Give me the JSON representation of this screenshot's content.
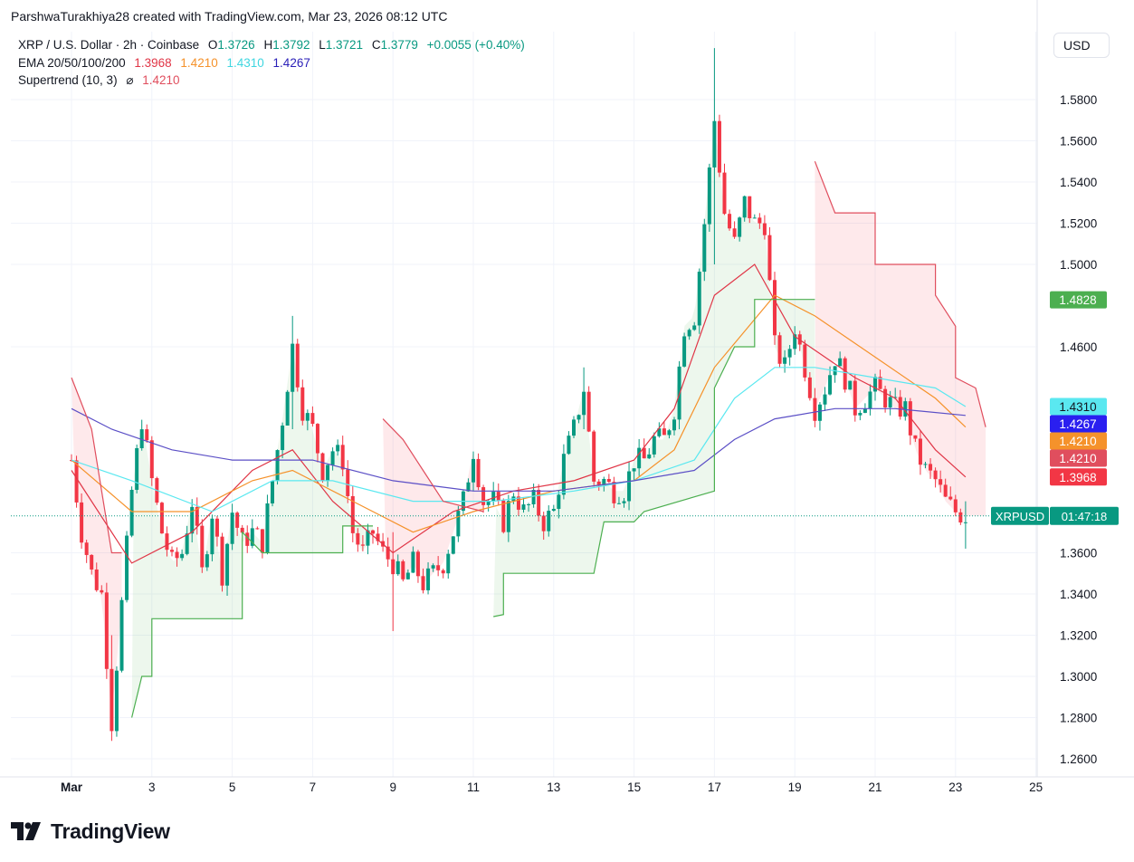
{
  "credit": "ParshwaTurakhiya28 created with TradingView.com, Mar 23, 2026 08:12 UTC",
  "legend": {
    "symbol": "XRP / U.S. Dollar · 2h · Coinbase",
    "o_label": "O",
    "o_value": "1.3726",
    "h_label": "H",
    "h_value": "1.3792",
    "l_label": "L",
    "l_value": "1.3721",
    "c_label": "C",
    "c_value": "1.3779",
    "change": "+0.0055 (+0.40%)",
    "ema_label": "EMA 20/50/100/200",
    "ema20": "1.3968",
    "ema50": "1.4210",
    "ema100": "1.4310",
    "ema200": "1.4267",
    "supertrend_label": "Supertrend (10, 3)",
    "supertrend_symbol": "⌀",
    "supertrend_value": "1.4210"
  },
  "currency": "USD",
  "brand": "TradingView",
  "colors": {
    "up": "#089981",
    "down": "#f23645",
    "ema20": "#e03546",
    "ema50": "#f5922b",
    "ema100": "#5ae8f0",
    "ema200": "#5b4fc6",
    "st_up": "#4caf50",
    "st_down": "#e04e5e"
  },
  "chart_data": {
    "type": "candlestick",
    "y_ticks": [
      "1.2600",
      "1.2800",
      "1.3000",
      "1.3200",
      "1.3400",
      "1.3600",
      "1.4600",
      "1.5000",
      "1.5200",
      "1.5400",
      "1.5600",
      "1.5800"
    ],
    "x_ticks": [
      "Mar",
      "3",
      "5",
      "7",
      "9",
      "11",
      "13",
      "15",
      "17",
      "19",
      "21",
      "23",
      "25"
    ],
    "ylim": [
      1.25,
      1.6
    ],
    "price_labels": [
      {
        "text": "1.4828",
        "value": 1.4828,
        "color": "#4caf50"
      },
      {
        "text": "1.4310",
        "value": 1.431,
        "color": "#5ae8f0",
        "text_color": "#131722"
      },
      {
        "text": "1.4267",
        "value": 1.4267,
        "color": "#2a1ff0"
      },
      {
        "text": "1.4210",
        "value": 1.421,
        "color": "#f5922b"
      },
      {
        "text": "1.4210",
        "value": 1.421,
        "color": "#e04e5e"
      },
      {
        "text": "1.3968",
        "value": 1.3968,
        "color": "#f23645"
      }
    ],
    "last_price": 1.3779,
    "last_symbol": "XRPUSD",
    "countdown": "01:47:18",
    "close_path": [
      [
        "Mar 1 00:00",
        1.405
      ],
      [
        "Mar 1 06:00",
        1.37
      ],
      [
        "Mar 1 12:00",
        1.35
      ],
      [
        "Mar 1 18:00",
        1.34
      ],
      [
        "Mar 2 00:00",
        1.278
      ],
      [
        "Mar 2 06:00",
        1.335
      ],
      [
        "Mar 2 12:00",
        1.39
      ],
      [
        "Mar 2 18:00",
        1.425
      ],
      [
        "Mar 3 00:00",
        1.395
      ],
      [
        "Mar 3 06:00",
        1.37
      ],
      [
        "Mar 3 12:00",
        1.355
      ],
      [
        "Mar 3 18:00",
        1.36
      ],
      [
        "Mar 4 00:00",
        1.385
      ],
      [
        "Mar 4 06:00",
        1.35
      ],
      [
        "Mar 4 12:00",
        1.38
      ],
      [
        "Mar 4 18:00",
        1.35
      ],
      [
        "Mar 5 00:00",
        1.38
      ],
      [
        "Mar 5 06:00",
        1.365
      ],
      [
        "Mar 5 12:00",
        1.37
      ],
      [
        "Mar 5 18:00",
        1.365
      ],
      [
        "Mar 6 00:00",
        1.395
      ],
      [
        "Mar 6 06:00",
        1.425
      ],
      [
        "Mar 6 12:00",
        1.46
      ],
      [
        "Mar 6 18:00",
        1.43
      ],
      [
        "Mar 7 00:00",
        1.42
      ],
      [
        "Mar 7 06:00",
        1.4
      ],
      [
        "Mar 7 12:00",
        1.41
      ],
      [
        "Mar 7 18:00",
        1.405
      ],
      [
        "Mar 8 00:00",
        1.37
      ],
      [
        "Mar 8 06:00",
        1.36
      ],
      [
        "Mar 8 12:00",
        1.37
      ],
      [
        "Mar 8 18:00",
        1.36
      ],
      [
        "Mar 9 00:00",
        1.355
      ],
      [
        "Mar 9 06:00",
        1.345
      ],
      [
        "Mar 9 12:00",
        1.355
      ],
      [
        "Mar 9 18:00",
        1.345
      ],
      [
        "Mar 10 00:00",
        1.35
      ],
      [
        "Mar 10 06:00",
        1.355
      ],
      [
        "Mar 10 12:00",
        1.37
      ],
      [
        "Mar 10 18:00",
        1.385
      ],
      [
        "Mar 11 00:00",
        1.41
      ],
      [
        "Mar 11 06:00",
        1.385
      ],
      [
        "Mar 11 12:00",
        1.385
      ],
      [
        "Mar 11 18:00",
        1.375
      ],
      [
        "Mar 12 00:00",
        1.39
      ],
      [
        "Mar 12 06:00",
        1.38
      ],
      [
        "Mar 12 12:00",
        1.385
      ],
      [
        "Mar 12 18:00",
        1.375
      ],
      [
        "Mar 13 00:00",
        1.38
      ],
      [
        "Mar 13 06:00",
        1.405
      ],
      [
        "Mar 13 12:00",
        1.42
      ],
      [
        "Mar 13 18:00",
        1.44
      ],
      [
        "Mar 14 00:00",
        1.395
      ],
      [
        "Mar 14 06:00",
        1.395
      ],
      [
        "Mar 14 12:00",
        1.39
      ],
      [
        "Mar 14 18:00",
        1.39
      ],
      [
        "Mar 15 00:00",
        1.405
      ],
      [
        "Mar 15 06:00",
        1.405
      ],
      [
        "Mar 15 12:00",
        1.415
      ],
      [
        "Mar 15 18:00",
        1.415
      ],
      [
        "Mar 16 00:00",
        1.43
      ],
      [
        "Mar 16 06:00",
        1.47
      ],
      [
        "Mar 16 12:00",
        1.475
      ],
      [
        "Mar 16 18:00",
        1.52
      ],
      [
        "Mar 17 00:00",
        1.57
      ],
      [
        "Mar 17 06:00",
        1.525
      ],
      [
        "Mar 17 12:00",
        1.51
      ],
      [
        "Mar 17 18:00",
        1.53
      ],
      [
        "Mar 18 00:00",
        1.52
      ],
      [
        "Mar 18 06:00",
        1.52
      ],
      [
        "Mar 18 12:00",
        1.46
      ],
      [
        "Mar 18 18:00",
        1.45
      ],
      [
        "Mar 19 00:00",
        1.47
      ],
      [
        "Mar 19 06:00",
        1.45
      ],
      [
        "Mar 19 12:00",
        1.43
      ],
      [
        "Mar 19 18:00",
        1.44
      ],
      [
        "Mar 20 00:00",
        1.455
      ],
      [
        "Mar 20 06:00",
        1.445
      ],
      [
        "Mar 20 12:00",
        1.43
      ],
      [
        "Mar 20 18:00",
        1.435
      ],
      [
        "Mar 21 00:00",
        1.44
      ],
      [
        "Mar 21 06:00",
        1.435
      ],
      [
        "Mar 21 12:00",
        1.43
      ],
      [
        "Mar 21 18:00",
        1.43
      ],
      [
        "Mar 22 00:00",
        1.41
      ],
      [
        "Mar 22 06:00",
        1.4
      ],
      [
        "Mar 22 12:00",
        1.395
      ],
      [
        "Mar 22 18:00",
        1.385
      ],
      [
        "Mar 23 00:00",
        1.38
      ],
      [
        "Mar 23 06:00",
        1.3779
      ]
    ],
    "spikes": [
      [
        "Mar 2 00:00",
        1.27,
        1.32
      ],
      [
        "Mar 17 00:00",
        1.5,
        1.605
      ],
      [
        "Mar 23 06:00",
        1.362,
        1.385
      ],
      [
        "Mar 6 12:00",
        1.42,
        1.475
      ],
      [
        "Mar 9 00:00",
        1.322,
        1.37
      ],
      [
        "Mar 13 18:00",
        1.42,
        1.45
      ]
    ],
    "ema20": [
      [
        "Mar 1 00:00",
        1.4
      ],
      [
        "Mar 2 12:00",
        1.355
      ],
      [
        "Mar 4 00:00",
        1.37
      ],
      [
        "Mar 5 12:00",
        1.4
      ],
      [
        "Mar 6 12:00",
        1.41
      ],
      [
        "Mar 7 12:00",
        1.385
      ],
      [
        "Mar 9 00:00",
        1.36
      ],
      [
        "Mar 10 12:00",
        1.38
      ],
      [
        "Mar 12 00:00",
        1.39
      ],
      [
        "Mar 13 12:00",
        1.395
      ],
      [
        "Mar 15 00:00",
        1.405
      ],
      [
        "Mar 16 00:00",
        1.43
      ],
      [
        "Mar 17 00:00",
        1.485
      ],
      [
        "Mar 18 00:00",
        1.5
      ],
      [
        "Mar 19 00:00",
        1.465
      ],
      [
        "Mar 20 12:00",
        1.445
      ],
      [
        "Mar 21 12:00",
        1.435
      ],
      [
        "Mar 22 12:00",
        1.41
      ],
      [
        "Mar 23 06:00",
        1.3968
      ]
    ],
    "ema50": [
      [
        "Mar 1 00:00",
        1.405
      ],
      [
        "Mar 2 12:00",
        1.38
      ],
      [
        "Mar 4 00:00",
        1.38
      ],
      [
        "Mar 5 12:00",
        1.395
      ],
      [
        "Mar 6 12:00",
        1.4
      ],
      [
        "Mar 8 00:00",
        1.385
      ],
      [
        "Mar 9 12:00",
        1.37
      ],
      [
        "Mar 11 00:00",
        1.38
      ],
      [
        "Mar 13 00:00",
        1.39
      ],
      [
        "Mar 15 00:00",
        1.395
      ],
      [
        "Mar 16 00:00",
        1.41
      ],
      [
        "Mar 17 00:00",
        1.45
      ],
      [
        "Mar 18 12:00",
        1.485
      ],
      [
        "Mar 19 12:00",
        1.475
      ],
      [
        "Mar 21 00:00",
        1.455
      ],
      [
        "Mar 22 12:00",
        1.435
      ],
      [
        "Mar 23 06:00",
        1.421
      ]
    ],
    "ema100": [
      [
        "Mar 1 00:00",
        1.405
      ],
      [
        "Mar 2 12:00",
        1.395
      ],
      [
        "Mar 4 12:00",
        1.38
      ],
      [
        "Mar 6 00:00",
        1.395
      ],
      [
        "Mar 7 12:00",
        1.395
      ],
      [
        "Mar 9 12:00",
        1.385
      ],
      [
        "Mar 11 12:00",
        1.385
      ],
      [
        "Mar 13 12:00",
        1.39
      ],
      [
        "Mar 15 00:00",
        1.395
      ],
      [
        "Mar 16 12:00",
        1.405
      ],
      [
        "Mar 17 12:00",
        1.435
      ],
      [
        "Mar 18 12:00",
        1.45
      ],
      [
        "Mar 19 12:00",
        1.45
      ],
      [
        "Mar 21 00:00",
        1.445
      ],
      [
        "Mar 22 12:00",
        1.44
      ],
      [
        "Mar 23 06:00",
        1.431
      ]
    ],
    "ema200": [
      [
        "Mar 1 00:00",
        1.43
      ],
      [
        "Mar 2 00:00",
        1.42
      ],
      [
        "Mar 3 12:00",
        1.41
      ],
      [
        "Mar 5 00:00",
        1.405
      ],
      [
        "Mar 7 00:00",
        1.405
      ],
      [
        "Mar 9 00:00",
        1.395
      ],
      [
        "Mar 11 00:00",
        1.39
      ],
      [
        "Mar 13 00:00",
        1.39
      ],
      [
        "Mar 15 00:00",
        1.395
      ],
      [
        "Mar 16 12:00",
        1.4
      ],
      [
        "Mar 17 12:00",
        1.415
      ],
      [
        "Mar 18 12:00",
        1.425
      ],
      [
        "Mar 20 00:00",
        1.43
      ],
      [
        "Mar 21 12:00",
        1.43
      ],
      [
        "Mar 23 06:00",
        1.4267
      ]
    ],
    "supertrend": [
      {
        "dir": "down",
        "points": [
          [
            "Mar 1 00:00",
            1.445
          ],
          [
            "Mar 1 12:00",
            1.42
          ],
          [
            "Mar 2 00:00",
            1.36
          ],
          [
            "Mar 2 06:00",
            1.36
          ]
        ]
      },
      {
        "dir": "up",
        "points": [
          [
            "Mar 2 12:00",
            1.28
          ],
          [
            "Mar 2 18:00",
            1.3
          ],
          [
            "Mar 3 00:00",
            1.3
          ],
          [
            "Mar 3 00:01",
            1.328
          ],
          [
            "Mar 5 06:00",
            1.328
          ],
          [
            "Mar 5 06:01",
            1.37
          ],
          [
            "Mar 5 18:00",
            1.36
          ],
          [
            "Mar 6 00:00",
            1.36
          ],
          [
            "Mar 6 12:00",
            1.36
          ],
          [
            "Mar 7 18:00",
            1.36
          ],
          [
            "Mar 7 18:01",
            1.373
          ],
          [
            "Mar 8 12:00",
            1.373
          ]
        ]
      },
      {
        "dir": "down",
        "points": [
          [
            "Mar 8 18:00",
            1.425
          ],
          [
            "Mar 9 06:00",
            1.415
          ],
          [
            "Mar 9 18:00",
            1.4
          ],
          [
            "Mar 10 06:00",
            1.385
          ],
          [
            "Mar 11 06:00",
            1.38
          ]
        ]
      },
      {
        "dir": "up",
        "points": [
          [
            "Mar 11 12:00",
            1.329
          ],
          [
            "Mar 11 18:00",
            1.33
          ],
          [
            "Mar 11 18:01",
            1.35
          ],
          [
            "Mar 14 00:00",
            1.35
          ],
          [
            "Mar 14 06:00",
            1.375
          ],
          [
            "Mar 15 00:00",
            1.375
          ],
          [
            "Mar 15 06:00",
            1.38
          ],
          [
            "Mar 17 00:00",
            1.39
          ],
          [
            "Mar 17 00:01",
            1.44
          ],
          [
            "Mar 17 12:00",
            1.46
          ],
          [
            "Mar 18 00:00",
            1.46
          ],
          [
            "Mar 18 00:01",
            1.483
          ],
          [
            "Mar 19 12:00",
            1.483
          ]
        ]
      },
      {
        "dir": "down",
        "points": [
          [
            "Mar 19 12:00",
            1.55
          ],
          [
            "Mar 20 00:00",
            1.525
          ],
          [
            "Mar 21 00:00",
            1.525
          ],
          [
            "Mar 21 00:01",
            1.5
          ],
          [
            "Mar 22 12:00",
            1.5
          ],
          [
            "Mar 22 12:01",
            1.485
          ],
          [
            "Mar 23 00:00",
            1.47
          ],
          [
            "Mar 23 00:01",
            1.445
          ],
          [
            "Mar 23 12:00",
            1.44
          ],
          [
            "Mar 23 18:00",
            1.421
          ]
        ]
      }
    ]
  }
}
